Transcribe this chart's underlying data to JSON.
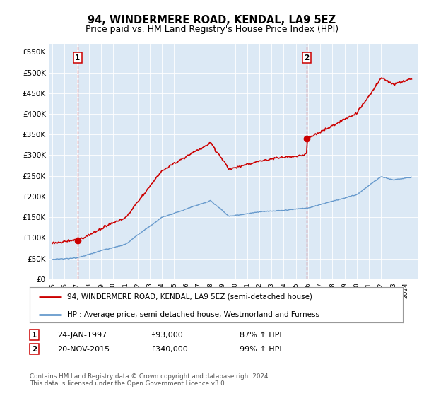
{
  "title": "94, WINDERMERE ROAD, KENDAL, LA9 5EZ",
  "subtitle": "Price paid vs. HM Land Registry's House Price Index (HPI)",
  "ylim": [
    0,
    570000
  ],
  "yticks": [
    0,
    50000,
    100000,
    150000,
    200000,
    250000,
    300000,
    350000,
    400000,
    450000,
    500000,
    550000
  ],
  "ytick_labels": [
    "£0",
    "£50K",
    "£100K",
    "£150K",
    "£200K",
    "£250K",
    "£300K",
    "£350K",
    "£400K",
    "£450K",
    "£500K",
    "£550K"
  ],
  "bg_color": "#dce9f5",
  "sale1_year": 1997.07,
  "sale1_price": 93000,
  "sale2_year": 2015.9,
  "sale2_price": 340000,
  "line_color_property": "#cc0000",
  "line_color_hpi": "#6699cc",
  "legend_property": "94, WINDERMERE ROAD, KENDAL, LA9 5EZ (semi-detached house)",
  "legend_hpi": "HPI: Average price, semi-detached house, Westmorland and Furness",
  "ann1_date": "24-JAN-1997",
  "ann1_price": "£93,000",
  "ann1_hpi": "87% ↑ HPI",
  "ann2_date": "20-NOV-2015",
  "ann2_price": "£340,000",
  "ann2_hpi": "99% ↑ HPI",
  "footer": "Contains HM Land Registry data © Crown copyright and database right 2024.\nThis data is licensed under the Open Government Licence v3.0."
}
